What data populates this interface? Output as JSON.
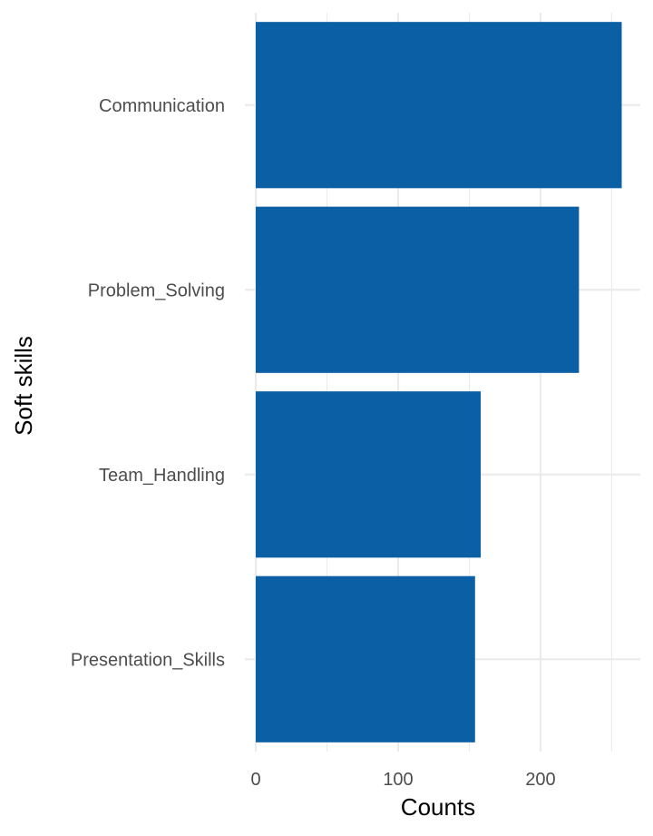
{
  "chart_data": {
    "type": "bar",
    "orientation": "horizontal",
    "categories": [
      "Communication",
      "Problem_Solving",
      "Team_Handling",
      "Presentation_Skills"
    ],
    "values": [
      257,
      227,
      158,
      154
    ],
    "xlabel": "Counts",
    "ylabel": "Soft skills",
    "xlim": [
      -3,
      270
    ],
    "xticks": [
      0,
      100,
      200
    ],
    "x_minor_ticks": [
      50,
      150,
      250
    ],
    "grid": true,
    "bar_color": "#0b5fa5"
  }
}
